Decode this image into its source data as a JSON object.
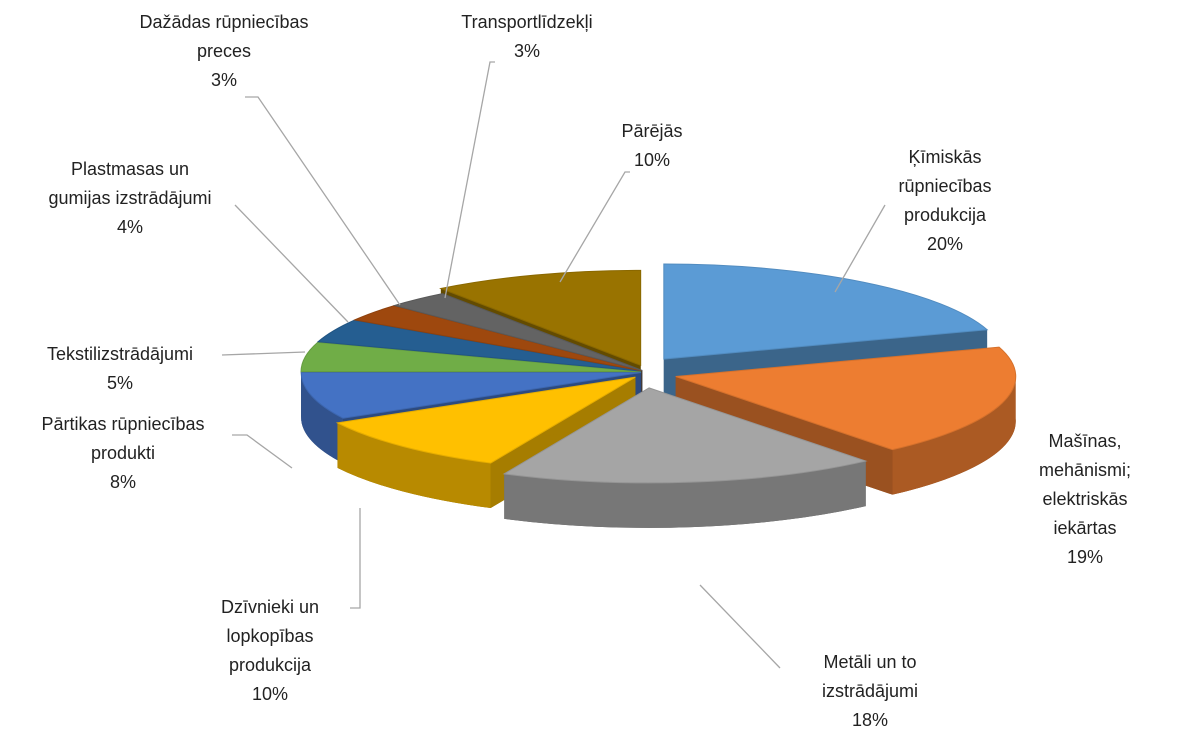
{
  "chart_data": {
    "type": "pie",
    "categories": [
      "Ķīmiskās\nrūpniecības\nprodukcija",
      "Mašīnas,\nmehānismi;\nelektriskās iekārtas",
      "Metāli un to\nizstrādājumi",
      "Dzīvnieki un\nlopkopības\nprodukcija",
      "Pārtikas rūpniecības\nprodukti",
      "Tekstilizstrādājumi",
      "Plastmasas un\ngumijas izstrādājumi",
      "Dažādas rūpniecības\npreces",
      "Transportlīdzekļi",
      "Pārējās"
    ],
    "values": [
      20,
      19,
      18,
      10,
      8,
      5,
      4,
      3,
      3,
      10
    ],
    "value_labels": [
      "20%",
      "19%",
      "18%",
      "10%",
      "8%",
      "5%",
      "4%",
      "3%",
      "3%",
      "10%"
    ],
    "colors": [
      "#5b9bd5",
      "#ed7d31",
      "#a5a5a5",
      "#ffc000",
      "#4472c4",
      "#70ad47",
      "#255e91",
      "#9e480e",
      "#636363",
      "#997300"
    ]
  }
}
